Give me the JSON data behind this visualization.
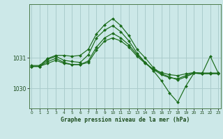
{
  "title": "Graphe pression niveau de la mer (hPa)",
  "background_color": "#cce8e8",
  "grid_color": "#aacccc",
  "line_color": "#1a6b1a",
  "marker_color": "#1a6b1a",
  "x_ticks": [
    0,
    1,
    2,
    3,
    4,
    5,
    6,
    7,
    8,
    9,
    10,
    11,
    12,
    13,
    14,
    15,
    16,
    17,
    18,
    19,
    20,
    21,
    22,
    23
  ],
  "y_ticks": [
    1030,
    1031
  ],
  "ylim": [
    1029.35,
    1032.75
  ],
  "xlim": [
    -0.3,
    23.3
  ],
  "series": [
    [
      1030.72,
      1030.72,
      1030.82,
      1030.92,
      1030.82,
      1030.78,
      1030.78,
      1030.85,
      1031.25,
      1031.55,
      1031.65,
      1031.55,
      1031.35,
      1031.05,
      1030.82,
      1030.62,
      1030.52,
      1030.45,
      1030.42,
      1030.48,
      1030.52,
      1030.5,
      1030.5,
      1030.5
    ],
    [
      1030.72,
      1030.72,
      1030.88,
      1030.98,
      1030.85,
      1030.78,
      1030.78,
      1030.9,
      1031.35,
      1031.65,
      1031.8,
      1031.65,
      1031.42,
      1031.1,
      1030.85,
      1030.62,
      1030.45,
      1030.35,
      1030.32,
      1030.42,
      1030.52,
      1030.5,
      1030.5,
      1030.5
    ],
    [
      1030.72,
      1030.72,
      1030.95,
      1031.05,
      1030.92,
      1030.88,
      1030.85,
      1031.1,
      1031.65,
      1031.9,
      1032.05,
      1031.85,
      1031.55,
      1031.15,
      1030.85,
      1030.58,
      1030.25,
      1029.85,
      1029.55,
      1030.08,
      1030.5,
      1030.48,
      1031.05,
      1030.5
    ],
    [
      1030.75,
      1030.75,
      1030.98,
      1031.08,
      1031.08,
      1031.05,
      1031.08,
      1031.28,
      1031.78,
      1032.08,
      1032.28,
      1032.05,
      1031.72,
      1031.28,
      1031.0,
      1030.68,
      1030.48,
      1030.38,
      1030.28,
      1030.38,
      1030.5,
      1030.48,
      1030.48,
      1030.48
    ]
  ]
}
